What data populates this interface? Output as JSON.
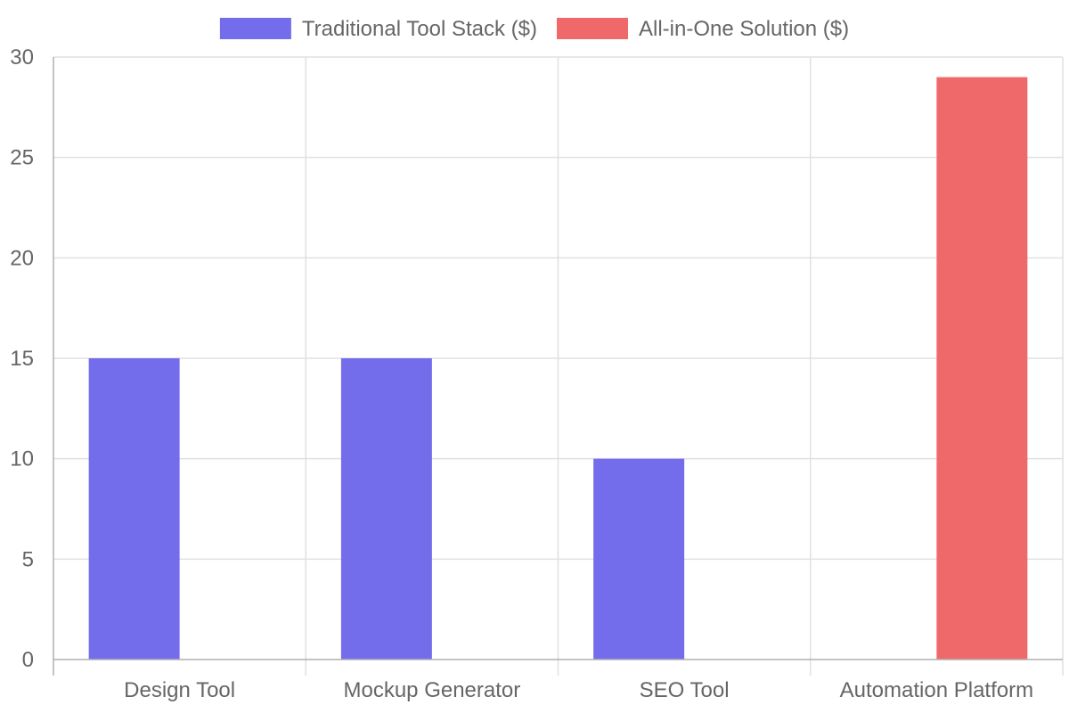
{
  "chart_data": {
    "type": "bar",
    "categories": [
      "Design Tool",
      "Mockup Generator",
      "SEO Tool",
      "Automation Platform"
    ],
    "series": [
      {
        "name": "Traditional Tool Stack ($)",
        "values": [
          15,
          15,
          10,
          null
        ],
        "color": "#736DEB"
      },
      {
        "name": "All-in-One Solution ($)",
        "values": [
          null,
          null,
          null,
          29
        ],
        "color": "#F0696A"
      }
    ],
    "ylim": [
      0,
      30
    ],
    "yticks": [
      0,
      5,
      10,
      15,
      20,
      25,
      30
    ],
    "grid": true,
    "legend_position": "top-center",
    "title": "",
    "xlabel": "",
    "ylabel": ""
  }
}
